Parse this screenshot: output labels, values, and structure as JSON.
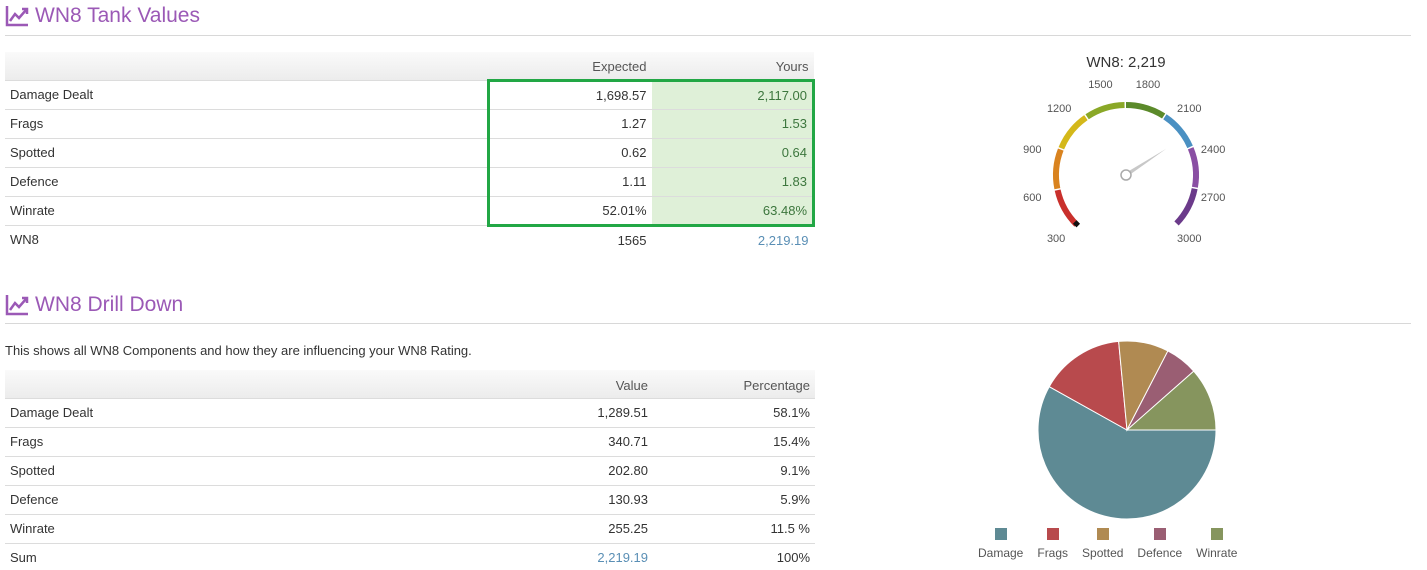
{
  "tank_values": {
    "title": "WN8 Tank Values",
    "headers": [
      "",
      "Expected",
      "Yours"
    ],
    "rows": [
      {
        "label": "Damage Dealt",
        "expected": "1,698.57",
        "yours": "2,117.00"
      },
      {
        "label": "Frags",
        "expected": "1.27",
        "yours": "1.53"
      },
      {
        "label": "Spotted",
        "expected": "0.62",
        "yours": "0.64"
      },
      {
        "label": "Defence",
        "expected": "1.11",
        "yours": "1.83"
      },
      {
        "label": "Winrate",
        "expected": "52.01%",
        "yours": "63.48%"
      },
      {
        "label": "WN8",
        "expected": "1565",
        "yours": "2,219.19"
      }
    ]
  },
  "gauge": {
    "title": "WN8: 2,219",
    "value": 2219,
    "min": 300,
    "max": 3000,
    "labels": [
      "300",
      "600",
      "900",
      "1200",
      "1500",
      "1800",
      "2100",
      "2400",
      "2700",
      "3000"
    ],
    "band_colors": [
      "#c9302c",
      "#d9831f",
      "#d4b81a",
      "#8aa827",
      "#5b8a2a",
      "#4a90c2",
      "#8a4fa3",
      "#6b3a8a"
    ]
  },
  "drill_down": {
    "title": "WN8 Drill Down",
    "description": "This shows all WN8 Components and how they are influencing your WN8 Rating.",
    "headers": [
      "",
      "Value",
      "Percentage"
    ],
    "rows": [
      {
        "label": "Damage Dealt",
        "value": "1,289.51",
        "percentage": "58.1%"
      },
      {
        "label": "Frags",
        "value": "340.71",
        "percentage": "15.4%"
      },
      {
        "label": "Spotted",
        "value": "202.80",
        "percentage": "9.1%"
      },
      {
        "label": "Defence",
        "value": "130.93",
        "percentage": "5.9%"
      },
      {
        "label": "Winrate",
        "value": "255.25",
        "percentage": "11.5 %"
      },
      {
        "label": "Sum",
        "value": "2,219.19",
        "percentage": "100%"
      }
    ]
  },
  "chart_data": {
    "type": "pie",
    "categories": [
      "Damage",
      "Frags",
      "Spotted",
      "Defence",
      "Winrate"
    ],
    "values": [
      58.1,
      15.4,
      9.1,
      5.9,
      11.5
    ],
    "colors": [
      "#5e8a94",
      "#b84a4d",
      "#b08a52",
      "#9a5e73",
      "#86955e"
    ]
  },
  "icons": {
    "section_icon": "line-chart-icon"
  }
}
